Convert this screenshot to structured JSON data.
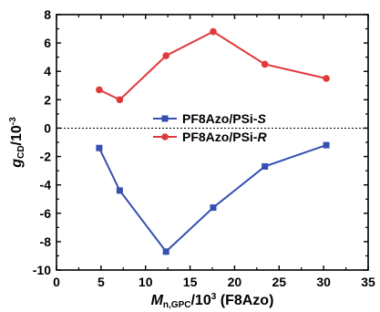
{
  "chart_data": {
    "type": "line",
    "xlim": [
      0,
      35
    ],
    "ylim": [
      -10,
      8
    ],
    "x_ticks": [
      0,
      5,
      10,
      15,
      20,
      25,
      30,
      35
    ],
    "y_ticks": [
      -10,
      -8,
      -6,
      -4,
      -2,
      0,
      2,
      4,
      6,
      8
    ],
    "x_tick_labels": [
      "0",
      "5",
      "10",
      "15",
      "20",
      "25",
      "30",
      "35"
    ],
    "y_tick_labels": [
      "-10",
      "-8",
      "-6",
      "-4",
      "-2",
      "0",
      "2",
      "4",
      "6",
      "8"
    ],
    "reference_line_y": 0,
    "xlabel": {
      "main": "M",
      "sub": "n,GPC",
      "rest": "/10",
      "sup": "3",
      "suffix": " (F8Azo)"
    },
    "ylabel": {
      "main": "g",
      "sub": "CD",
      "rest": "/10",
      "sup": "-3"
    },
    "legend_position": "center",
    "series": [
      {
        "name": "PF8Azo/PSi-S",
        "name_plain": "PF8Azo/PSi-",
        "name_italic": "S",
        "color": "#3550b0",
        "marker": "square",
        "x": [
          4.8,
          7.1,
          12.3,
          17.6,
          23.4,
          30.3
        ],
        "y": [
          -1.4,
          -4.4,
          -8.7,
          -5.6,
          -2.7,
          -1.2
        ]
      },
      {
        "name": "PF8Azo/PSi-R",
        "name_plain": "PF8Azo/PSi-",
        "name_italic": "R",
        "color": "#e0393b",
        "marker": "circle",
        "x": [
          4.8,
          7.1,
          12.3,
          17.6,
          23.4,
          30.3
        ],
        "y": [
          2.7,
          2.0,
          5.1,
          6.8,
          4.5,
          3.5
        ]
      }
    ]
  }
}
